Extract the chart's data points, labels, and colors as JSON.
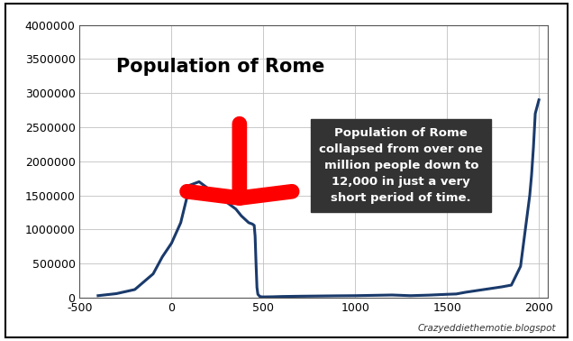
{
  "title": "Population of Rome",
  "xlim": [
    -500,
    2050
  ],
  "ylim": [
    0,
    4000000
  ],
  "xticks": [
    -500,
    0,
    500,
    1000,
    1500,
    2000
  ],
  "yticks": [
    0,
    500000,
    1000000,
    1500000,
    2000000,
    2500000,
    3000000,
    3500000,
    4000000
  ],
  "line_color": "#1a3a6b",
  "line_width": 2.2,
  "background_color": "#ffffff",
  "annotation_text": "Population of Rome\ncollapsed from over one\nmillion people down to\n12,000 in just a very\nshort period of time.",
  "annotation_box_color": "#333333",
  "annotation_text_color": "#ffffff",
  "arrow_color": "#ff0000",
  "watermark": "Crazyeddiethemotie.blogspot",
  "data_x": [
    -400,
    -300,
    -200,
    -100,
    -50,
    0,
    50,
    100,
    130,
    150,
    200,
    250,
    300,
    350,
    380,
    400,
    420,
    440,
    450,
    455,
    460,
    465,
    470,
    480,
    490,
    500,
    550,
    600,
    700,
    800,
    900,
    1000,
    1100,
    1200,
    1300,
    1400,
    1500,
    1550,
    1600,
    1700,
    1800,
    1850,
    1900,
    1950,
    1960,
    1970,
    1980,
    1990,
    2000
  ],
  "data_y": [
    30000,
    60000,
    120000,
    350000,
    600000,
    800000,
    1100000,
    1650000,
    1680000,
    1700000,
    1600000,
    1500000,
    1400000,
    1300000,
    1200000,
    1150000,
    1100000,
    1080000,
    1060000,
    900000,
    500000,
    150000,
    50000,
    20000,
    13000,
    12000,
    14000,
    18000,
    22000,
    25000,
    28000,
    30000,
    35000,
    40000,
    30000,
    38000,
    50000,
    55000,
    80000,
    120000,
    160000,
    185000,
    460000,
    1500000,
    1800000,
    2200000,
    2700000,
    2800000,
    2900000
  ]
}
